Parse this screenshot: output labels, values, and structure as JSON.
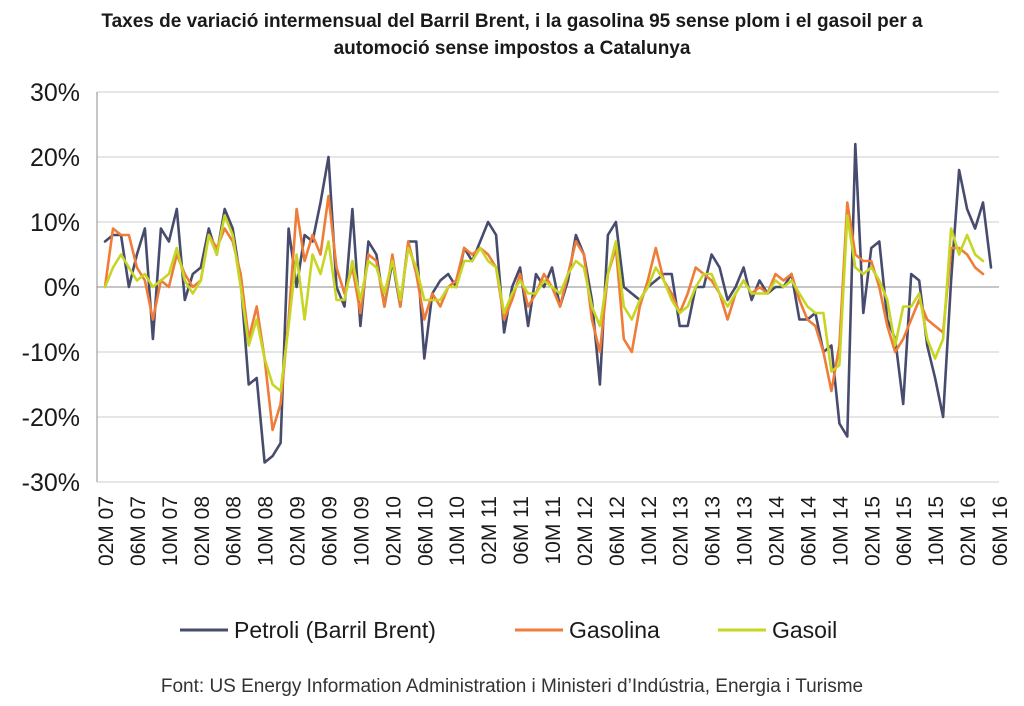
{
  "chart_data": {
    "type": "line",
    "title_lines": [
      "Taxes de variació intermensual del Barril Brent, i la gasolina 95 sense plom i el gasoil per a",
      "automoció sense impostos a Catalunya"
    ],
    "xlabel": "",
    "ylabel": "",
    "ylim": [
      -30,
      30
    ],
    "yticks": [
      -30,
      -20,
      -10,
      0,
      10,
      20,
      30
    ],
    "ytick_labels": [
      "-30%",
      "-20%",
      "-10%",
      "0%",
      "10%",
      "20%",
      "30%"
    ],
    "grid": "horizontal",
    "x_start_label": "02M 07",
    "n_points": 113,
    "xtick_labels": [
      "02M 07",
      "06M 07",
      "10M 07",
      "02M 08",
      "06M 08",
      "10M 08",
      "02M 09",
      "06M 09",
      "10M 09",
      "02M 10",
      "06M 10",
      "10M 10",
      "02M 11",
      "06M 11",
      "10M 11",
      "02M 12",
      "06M 12",
      "10M 12",
      "02M 13",
      "06M 13",
      "10M 13",
      "02M 14",
      "06M 14",
      "10M 14",
      "02M 15",
      "06M 15",
      "10M 15",
      "02M 16",
      "06M 16"
    ],
    "legend_position": "bottom",
    "series": [
      {
        "name": "Petroli (Barril Brent)",
        "color": "#474c6e",
        "values": [
          7,
          8,
          8,
          0,
          5,
          9,
          -8,
          9,
          7,
          12,
          -2,
          2,
          3,
          9,
          5,
          12,
          9,
          1,
          -15,
          -14,
          -27,
          -26,
          -24,
          9,
          0,
          8,
          7,
          13,
          20,
          0,
          -3,
          12,
          -6,
          7,
          5,
          -3,
          4,
          -3,
          7,
          7,
          -11,
          -1,
          1,
          2,
          0,
          6,
          4,
          7,
          10,
          8,
          -7,
          0,
          3,
          -6,
          2,
          0,
          3,
          -3,
          1,
          8,
          5,
          -2,
          -15,
          8,
          10,
          0,
          -1,
          -2,
          0,
          1,
          2,
          2,
          -6,
          -6,
          0,
          0,
          5,
          3,
          -2,
          0,
          3,
          -2,
          1,
          -1,
          0,
          0,
          2,
          -5,
          -5,
          -4,
          -10,
          -9,
          -21,
          -23,
          22,
          -4,
          6,
          7,
          -5,
          -8,
          -18,
          2,
          1,
          -9,
          -14,
          -20,
          1,
          18,
          12,
          9,
          13,
          3
        ]
      },
      {
        "name": "Gasolina",
        "color": "#ef7c38",
        "values": [
          0,
          9,
          8,
          8,
          3,
          1,
          -5,
          1,
          0,
          5,
          2,
          0,
          1,
          8,
          6,
          9,
          7,
          2,
          -8,
          -3,
          -11,
          -22,
          -18,
          -5,
          12,
          4,
          8,
          5,
          14,
          3,
          -1,
          3,
          -4,
          5,
          4,
          -3,
          5,
          -3,
          7,
          2,
          -5,
          -1,
          -3,
          0,
          1,
          6,
          5,
          6,
          5,
          3,
          -5,
          -2,
          2,
          -3,
          -1,
          2,
          0,
          -3,
          2,
          7,
          5,
          -5,
          -10,
          2,
          6,
          -8,
          -10,
          -3,
          1,
          6,
          1,
          -1,
          -4,
          -1,
          3,
          2,
          1,
          -1,
          -5,
          -1,
          1,
          -1,
          0,
          -1,
          2,
          1,
          2,
          -2,
          -5,
          -6,
          -10,
          -16,
          -9,
          13,
          5,
          4,
          4,
          0,
          -6,
          -10,
          -8,
          -5,
          -2,
          -5,
          -6,
          -7,
          6,
          6,
          5,
          3,
          2
        ]
      },
      {
        "name": "Gasoil",
        "color": "#c6d623",
        "values": [
          0,
          3,
          5,
          3,
          1,
          2,
          0,
          1,
          2,
          6,
          1,
          -1,
          1,
          8,
          5,
          11,
          8,
          0,
          -9,
          -5,
          -11,
          -15,
          -16,
          -6,
          5,
          -5,
          5,
          2,
          7,
          -2,
          -2,
          4,
          -2,
          4,
          3,
          -1,
          4,
          -2,
          6,
          3,
          -2,
          -2,
          -2,
          0,
          0,
          4,
          4,
          6,
          4,
          3,
          -4,
          -1,
          1,
          -1,
          -1,
          1,
          0,
          -1,
          2,
          4,
          3,
          -3,
          -6,
          2,
          7,
          -3,
          -5,
          -2,
          0,
          3,
          1,
          -2,
          -4,
          -3,
          0,
          2,
          2,
          -1,
          -3,
          -1,
          1,
          -1,
          -1,
          -1,
          1,
          0,
          1,
          -1,
          -3,
          -4,
          -4,
          -13,
          -12,
          11,
          3,
          2,
          3,
          1,
          -2,
          -9,
          -3,
          -3,
          -1,
          -8,
          -11,
          -8,
          9,
          5,
          8,
          5,
          4
        ]
      }
    ]
  },
  "source_text": "Font: US Energy Information Administration i Ministeri d’Indústria, Energia i Turisme"
}
